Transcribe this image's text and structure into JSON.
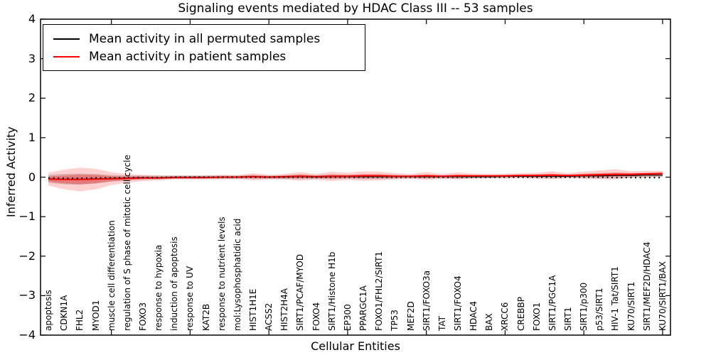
{
  "chart_data": {
    "type": "line",
    "title": "Signaling events mediated by HDAC Class III -- 53 samples",
    "xlabel": "Cellular Entities",
    "ylabel": "Inferred Activity",
    "ylim": [
      -4,
      4
    ],
    "yticks": [
      4,
      3,
      2,
      1,
      0,
      -1,
      -2,
      -3,
      -4
    ],
    "x_major_tick_interval": 5,
    "grid": false,
    "legend_position": "upper left",
    "categories": [
      "apoptosis",
      "CDKN1A",
      "FHL2",
      "MYOD1",
      "muscle cell differentiation",
      "regulation of S phase of mitotic cell cycle",
      "FOXO3",
      "response to hypoxia",
      "induction of apoptosis",
      "response to UV",
      "KAT2B",
      "response to nutrient levels",
      "mol:Lysophosphatidic acid",
      "HIST1H1E",
      "ACSS2",
      "HIST2H4A",
      "SIRT1/PCAF/MYOD",
      "FOXO4",
      "SIRT1/Histone H1b",
      "EP300",
      "PPARGC1A",
      "FOXO1/FHL2/SIRT1",
      "TP53",
      "MEF2D",
      "SIRT1/FOXO3a",
      "TAT",
      "SIRT1/FOXO4",
      "HDAC4",
      "BAX",
      "XRCC6",
      "CREBBP",
      "FOXO1",
      "SIRT1/PGC1A",
      "SIRT1",
      "SIRT1/p300",
      "p53/SIRT1",
      "HIV-1 Tat/SIRT1",
      "KU70/SIRT1",
      "SIRT1/MEF2D/HDAC4",
      "KU70/SIRT1/BAX"
    ],
    "series": [
      {
        "name": "Mean activity in all permuted samples",
        "color": "#000000",
        "band_color": "rgba(0,0,0,0.18)",
        "values": [
          -0.04,
          -0.05,
          -0.05,
          -0.04,
          -0.03,
          -0.02,
          -0.01,
          -0.01,
          0,
          0,
          0,
          0,
          0,
          0.01,
          0,
          0,
          0.01,
          0,
          0.01,
          0.01,
          0.01,
          0.01,
          0.01,
          0.01,
          0.01,
          0.01,
          0.01,
          0.01,
          0.01,
          0.02,
          0.02,
          0.02,
          0.02,
          0.02,
          0.03,
          0.03,
          0.04,
          0.04,
          0.05,
          0.05
        ],
        "std": [
          0.1,
          0.13,
          0.14,
          0.12,
          0.08,
          0.06,
          0.05,
          0.05,
          0.04,
          0.04,
          0.04,
          0.04,
          0.04,
          0.05,
          0.04,
          0.05,
          0.06,
          0.05,
          0.06,
          0.05,
          0.06,
          0.06,
          0.05,
          0.04,
          0.05,
          0.04,
          0.05,
          0.04,
          0.04,
          0.04,
          0.04,
          0.05,
          0.05,
          0.04,
          0.05,
          0.06,
          0.06,
          0.05,
          0.05,
          0.05
        ]
      },
      {
        "name": "Mean activity in patient samples",
        "color": "#ff0000",
        "band_color": "rgba(255,0,0,0.18)",
        "band_inner_color": "rgba(255,0,0,0.28)",
        "values": [
          -0.05,
          -0.06,
          -0.06,
          -0.05,
          -0.04,
          -0.03,
          -0.02,
          -0.02,
          -0.01,
          -0.01,
          -0.01,
          0,
          0,
          0.01,
          0,
          0.01,
          0.02,
          0.01,
          0.02,
          0.02,
          0.03,
          0.03,
          0.02,
          0.02,
          0.03,
          0.02,
          0.03,
          0.03,
          0.03,
          0.03,
          0.04,
          0.04,
          0.05,
          0.04,
          0.05,
          0.06,
          0.07,
          0.07,
          0.08,
          0.09
        ],
        "std": [
          0.16,
          0.25,
          0.3,
          0.26,
          0.16,
          0.11,
          0.08,
          0.06,
          0.05,
          0.05,
          0.05,
          0.06,
          0.05,
          0.09,
          0.06,
          0.07,
          0.11,
          0.07,
          0.12,
          0.09,
          0.12,
          0.11,
          0.08,
          0.06,
          0.1,
          0.06,
          0.09,
          0.06,
          0.05,
          0.06,
          0.06,
          0.07,
          0.1,
          0.06,
          0.09,
          0.11,
          0.13,
          0.08,
          0.08,
          0.07
        ]
      }
    ],
    "dotted_reference": {
      "style": "dotted",
      "color": "#1a1a1a",
      "values": [
        -0.02,
        -0.03,
        -0.03,
        -0.02,
        -0.02,
        -0.01,
        -0.01,
        -0.01,
        0,
        0,
        0,
        0,
        0,
        0,
        0,
        0,
        0,
        0,
        0,
        0,
        0,
        0,
        0,
        0,
        0,
        0,
        0,
        0,
        0,
        0,
        0,
        0,
        0,
        0,
        0,
        0,
        -0.01,
        -0.01,
        -0.01,
        -0.01
      ]
    }
  }
}
